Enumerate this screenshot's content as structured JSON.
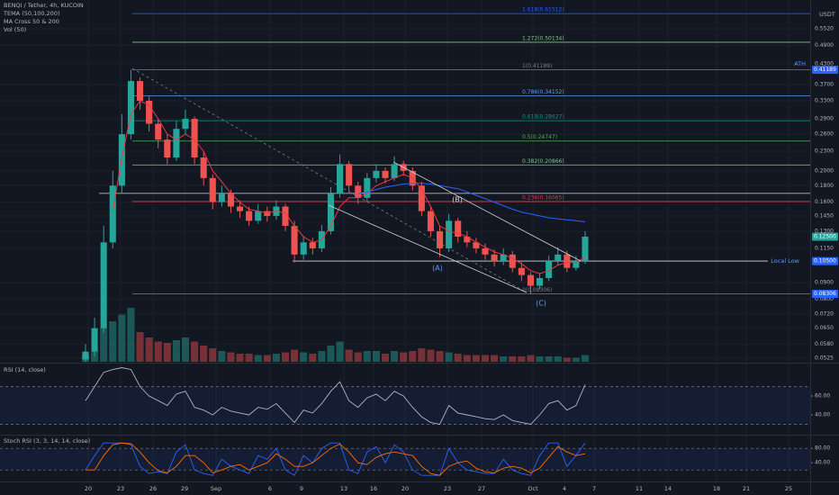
{
  "chart_data": [
    {
      "type": "candlestick",
      "title": "BENQI / Tether, 4h, KUCOIN",
      "indicators": [
        "TEMA (50,100,200)",
        "MA Cross 50 & 200",
        "Vol (50)"
      ],
      "unit": "USDT",
      "log": true,
      "ylim": [
        0.0508,
        0.678
      ],
      "yticks": [
        {
          "value": 0.552,
          "label": "0.5520"
        },
        {
          "value": 0.49,
          "label": "0.4900"
        },
        {
          "value": 0.43,
          "label": "0.4300"
        },
        {
          "value": 0.37,
          "label": "0.3700"
        },
        {
          "value": 0.33,
          "label": "0.3300"
        },
        {
          "value": 0.29,
          "label": "0.2900"
        },
        {
          "value": 0.26,
          "label": "0.2600"
        },
        {
          "value": 0.23,
          "label": "0.2300"
        },
        {
          "value": 0.2,
          "label": "0.2000"
        },
        {
          "value": 0.18,
          "label": "0.1800"
        },
        {
          "value": 0.16,
          "label": "0.1600"
        },
        {
          "value": 0.145,
          "label": "0.1450"
        },
        {
          "value": 0.13,
          "label": "0.1300"
        },
        {
          "value": 0.115,
          "label": "0.1150"
        },
        {
          "value": 0.09,
          "label": "0.0900"
        },
        {
          "value": 0.08,
          "label": "0.0800"
        },
        {
          "value": 0.072,
          "label": "0.0720"
        },
        {
          "value": 0.065,
          "label": "0.0650"
        },
        {
          "value": 0.058,
          "label": "0.0580"
        },
        {
          "value": 0.0525,
          "label": "0.0525"
        }
      ],
      "xticks": [
        "20",
        "23",
        "26",
        "29",
        "Sep",
        "6",
        "9",
        "13",
        "16",
        "20",
        "23",
        "27",
        "Oct",
        "4",
        "7",
        "11",
        "14",
        "18",
        "21",
        "25"
      ],
      "grid": true,
      "up_color": "#26a69a",
      "down_color": "#ef5350",
      "open": [
        0.052,
        0.055,
        0.065,
        0.12,
        0.18,
        0.26,
        0.38,
        0.33,
        0.28,
        0.25,
        0.22,
        0.27,
        0.29,
        0.22,
        0.19,
        0.16,
        0.17,
        0.155,
        0.15,
        0.14,
        0.15,
        0.145,
        0.155,
        0.135,
        0.11,
        0.12,
        0.115,
        0.13,
        0.17,
        0.21,
        0.18,
        0.165,
        0.19,
        0.2,
        0.19,
        0.21,
        0.2,
        0.18,
        0.15,
        0.13,
        0.115,
        0.14,
        0.125,
        0.12,
        0.115,
        0.11,
        0.105,
        0.11,
        0.1,
        0.095,
        0.088,
        0.093,
        0.105,
        0.11,
        0.1,
        0.105
      ],
      "high": [
        0.058,
        0.07,
        0.135,
        0.2,
        0.3,
        0.412,
        0.39,
        0.34,
        0.29,
        0.26,
        0.285,
        0.31,
        0.295,
        0.23,
        0.195,
        0.18,
        0.175,
        0.162,
        0.155,
        0.158,
        0.155,
        0.162,
        0.158,
        0.14,
        0.125,
        0.124,
        0.136,
        0.178,
        0.225,
        0.215,
        0.185,
        0.197,
        0.21,
        0.205,
        0.222,
        0.215,
        0.205,
        0.185,
        0.155,
        0.135,
        0.147,
        0.143,
        0.13,
        0.124,
        0.119,
        0.114,
        0.115,
        0.113,
        0.104,
        0.097,
        0.096,
        0.109,
        0.116,
        0.113,
        0.109,
        0.13
      ],
      "low": [
        0.051,
        0.053,
        0.063,
        0.115,
        0.17,
        0.25,
        0.31,
        0.265,
        0.235,
        0.21,
        0.215,
        0.26,
        0.21,
        0.18,
        0.152,
        0.155,
        0.148,
        0.143,
        0.135,
        0.137,
        0.139,
        0.141,
        0.13,
        0.104,
        0.106,
        0.11,
        0.112,
        0.127,
        0.165,
        0.172,
        0.158,
        0.16,
        0.184,
        0.183,
        0.186,
        0.193,
        0.174,
        0.145,
        0.125,
        0.108,
        0.112,
        0.12,
        0.116,
        0.111,
        0.106,
        0.101,
        0.102,
        0.097,
        0.091,
        0.083,
        0.086,
        0.091,
        0.102,
        0.097,
        0.098,
        0.103
      ],
      "close": [
        0.055,
        0.065,
        0.12,
        0.18,
        0.26,
        0.38,
        0.33,
        0.28,
        0.25,
        0.22,
        0.27,
        0.29,
        0.22,
        0.19,
        0.16,
        0.17,
        0.155,
        0.15,
        0.14,
        0.15,
        0.145,
        0.155,
        0.135,
        0.11,
        0.12,
        0.115,
        0.13,
        0.17,
        0.21,
        0.18,
        0.165,
        0.19,
        0.2,
        0.19,
        0.21,
        0.2,
        0.18,
        0.15,
        0.13,
        0.115,
        0.14,
        0.125,
        0.12,
        0.115,
        0.11,
        0.105,
        0.11,
        0.1,
        0.095,
        0.088,
        0.093,
        0.105,
        0.11,
        0.1,
        0.105,
        0.125
      ],
      "volume": [
        5,
        8,
        25,
        30,
        35,
        40,
        22,
        18,
        15,
        14,
        16,
        18,
        15,
        12,
        10,
        8,
        7,
        6,
        6,
        5,
        5,
        6,
        7,
        9,
        7,
        6,
        8,
        12,
        15,
        9,
        7,
        8,
        8,
        6,
        8,
        7,
        8,
        10,
        9,
        8,
        7,
        6,
        5,
        5,
        5,
        5,
        4,
        4,
        4,
        5,
        4,
        4,
        4,
        3,
        3,
        5
      ],
      "overlays": [
        {
          "color": "#f23645",
          "values": [
            null,
            null,
            null,
            0.15,
            0.22,
            0.3,
            0.33,
            0.32,
            0.29,
            0.26,
            0.25,
            0.26,
            0.25,
            0.23,
            0.2,
            0.185,
            0.17,
            0.16,
            0.152,
            0.15,
            0.148,
            0.15,
            0.148,
            0.135,
            0.125,
            0.12,
            0.122,
            0.135,
            0.155,
            0.165,
            0.165,
            0.17,
            0.18,
            0.185,
            0.19,
            0.195,
            0.19,
            0.175,
            0.155,
            0.135,
            0.13,
            0.128,
            0.125,
            0.12,
            0.116,
            0.112,
            0.11,
            0.107,
            0.103,
            0.098,
            0.096,
            0.098,
            0.102,
            0.104,
            0.104,
            0.108
          ]
        },
        {
          "color": "#2962ff",
          "values": [
            null,
            null,
            null,
            null,
            null,
            null,
            null,
            null,
            null,
            null,
            null,
            null,
            null,
            null,
            null,
            null,
            null,
            null,
            null,
            null,
            null,
            null,
            null,
            null,
            null,
            null,
            null,
            null,
            null,
            null,
            0.17,
            0.172,
            0.175,
            0.178,
            0.18,
            0.182,
            0.183,
            0.183,
            0.182,
            0.18,
            0.178,
            0.176,
            0.172,
            0.168,
            0.164,
            0.16,
            0.156,
            0.152,
            0.149,
            0.147,
            0.145,
            0.143,
            0.142,
            0.141,
            0.14,
            0.139
          ]
        }
      ],
      "fib": [
        {
          "label": "1.618(0.61512)",
          "price": 0.61512,
          "color": "#2962ff"
        },
        {
          "label": "1.272(0.50134)",
          "price": 0.50134,
          "color": "#81c784"
        },
        {
          "label": "1(0.41189)",
          "price": 0.41189,
          "color": "#787b86"
        },
        {
          "label": "0.786(0.34152)",
          "price": 0.34152,
          "color": "#5b9cf6"
        },
        {
          "label": "0.618(0.28627)",
          "price": 0.28627,
          "color": "#089981"
        },
        {
          "label": "0.5(0.24747)",
          "price": 0.24747,
          "color": "#4caf50"
        },
        {
          "label": "0.382(0.20866)",
          "price": 0.20866,
          "color": "#81c784"
        },
        {
          "label": "0.236(0.16065)",
          "price": 0.16065,
          "color": "#f23645"
        },
        {
          "label": "0(0.08306)",
          "price": 0.08306,
          "color": "#787b86"
        }
      ],
      "hlines": [
        {
          "price": 0.1703,
          "color": "#d1d4dc"
        },
        {
          "price": 0.105,
          "color": "#d1d4dc"
        }
      ],
      "annotations": [
        "(A)",
        "(B)",
        "(C)",
        "ATH",
        "Local Low"
      ],
      "price_labels": [
        {
          "value": 0.41189,
          "label": "0.41189",
          "color": "#2962ff"
        },
        {
          "value": 0.125,
          "label": "0.12500",
          "color": "#26a69a"
        },
        {
          "value": 0.105,
          "label": "0.10500",
          "color": "#2962ff"
        },
        {
          "value": 0.08306,
          "label": "0.08306",
          "color": "#2962ff"
        }
      ]
    },
    {
      "type": "line",
      "title": "RSI (14, close)",
      "color": "#b2b5be",
      "ylim": [
        20,
        93.3
      ],
      "yticks": [
        {
          "value": 60,
          "label": "60.00"
        },
        {
          "value": 40,
          "label": "40.00"
        }
      ],
      "bands": [
        30,
        70
      ],
      "values": [
        55,
        70,
        85,
        88,
        90,
        88,
        70,
        60,
        55,
        50,
        62,
        65,
        48,
        45,
        40,
        48,
        44,
        42,
        40,
        48,
        46,
        52,
        42,
        32,
        45,
        42,
        52,
        65,
        75,
        55,
        48,
        58,
        62,
        55,
        65,
        60,
        48,
        38,
        32,
        30,
        50,
        42,
        40,
        38,
        36,
        35,
        40,
        34,
        32,
        30,
        40,
        52,
        55,
        45,
        50,
        72
      ]
    },
    {
      "type": "line",
      "title": "Stoch RSI (3, 3, 14, 14, close)",
      "ylim": [
        -12,
        113
      ],
      "yticks": [
        {
          "value": 80,
          "label": "80.00"
        },
        {
          "value": 40,
          "label": "40.00"
        }
      ],
      "bands": [
        20,
        80
      ],
      "series": [
        {
          "color": "#2962ff",
          "values": [
            20,
            60,
            95,
            95,
            95,
            90,
            30,
            10,
            15,
            10,
            70,
            90,
            20,
            10,
            5,
            50,
            30,
            20,
            10,
            60,
            50,
            80,
            20,
            5,
            60,
            40,
            80,
            95,
            95,
            20,
            10,
            70,
            85,
            40,
            90,
            70,
            20,
            5,
            5,
            5,
            80,
            40,
            20,
            15,
            10,
            10,
            50,
            20,
            10,
            5,
            60,
            95,
            95,
            30,
            60,
            95
          ]
        },
        {
          "color": "#ff6d00",
          "values": [
            20,
            20,
            60,
            90,
            95,
            93,
            70,
            40,
            18,
            12,
            30,
            60,
            60,
            40,
            12,
            20,
            30,
            35,
            20,
            30,
            40,
            65,
            50,
            30,
            30,
            40,
            60,
            80,
            92,
            70,
            40,
            35,
            55,
            65,
            70,
            65,
            60,
            30,
            10,
            5,
            30,
            40,
            45,
            25,
            15,
            12,
            25,
            30,
            25,
            12,
            25,
            55,
            85,
            70,
            60,
            65
          ]
        }
      ]
    }
  ]
}
